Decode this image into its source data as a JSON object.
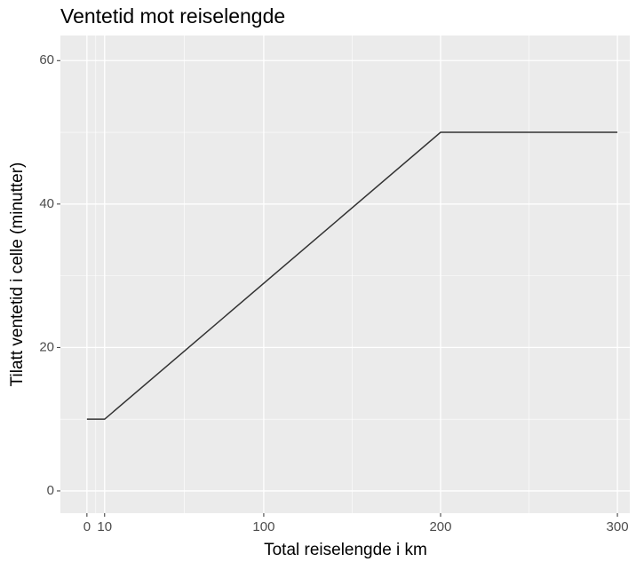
{
  "chart_data": {
    "type": "line",
    "title": "Ventetid mot reiselengde",
    "x_label": "Total reiselengde i km",
    "y_label": "Tilatt ventetid i celle (minutter)",
    "x": [
      0,
      10,
      200,
      300
    ],
    "series": [
      {
        "name": "Ventetid",
        "color": "#333333",
        "values": [
          10,
          10,
          50,
          50
        ]
      }
    ],
    "xlim": [
      -15,
      307
    ],
    "xticks": [
      0,
      10,
      100,
      200,
      300
    ],
    "ylim": [
      -3.1,
      63.5
    ],
    "yticks": [
      0,
      20,
      40,
      60
    ],
    "grid": true
  }
}
